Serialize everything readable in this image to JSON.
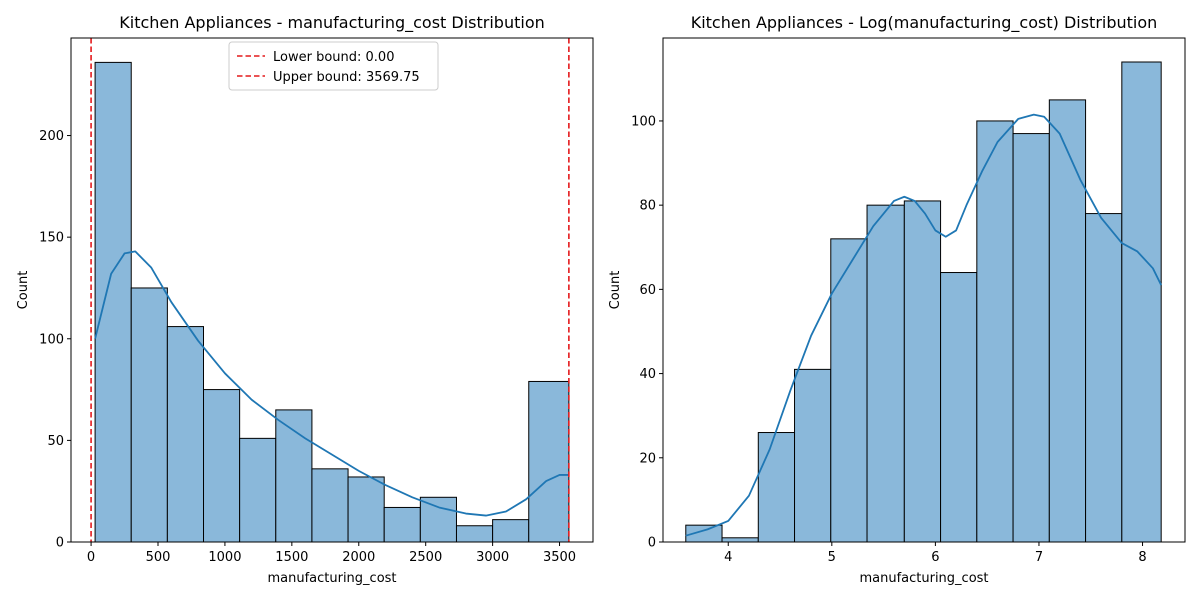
{
  "chart_data": [
    {
      "type": "bar",
      "title": "Kitchen Appliances - manufacturing_cost Distribution",
      "xlabel": "manufacturing_cost",
      "ylabel": "Count",
      "xlim": [
        -150,
        3750
      ],
      "ylim": [
        0,
        248
      ],
      "xticks": [
        0,
        500,
        1000,
        1500,
        2000,
        2500,
        3000,
        3500
      ],
      "xtick_labels": [
        "0",
        "500",
        "1000",
        "1500",
        "2000",
        "2500",
        "3000",
        "3500"
      ],
      "yticks": [
        0,
        50,
        100,
        150,
        200
      ],
      "ytick_labels": [
        "0",
        "50",
        "100",
        "150",
        "200"
      ],
      "bins": [
        {
          "x0": 30,
          "x1": 300,
          "count": 236
        },
        {
          "x0": 300,
          "x1": 570,
          "count": 125
        },
        {
          "x0": 570,
          "x1": 840,
          "count": 106
        },
        {
          "x0": 840,
          "x1": 1110,
          "count": 75
        },
        {
          "x0": 1110,
          "x1": 1380,
          "count": 51
        },
        {
          "x0": 1380,
          "x1": 1650,
          "count": 65
        },
        {
          "x0": 1650,
          "x1": 1920,
          "count": 36
        },
        {
          "x0": 1920,
          "x1": 2190,
          "count": 32
        },
        {
          "x0": 2190,
          "x1": 2460,
          "count": 17
        },
        {
          "x0": 2460,
          "x1": 2730,
          "count": 22
        },
        {
          "x0": 2730,
          "x1": 3000,
          "count": 8
        },
        {
          "x0": 3000,
          "x1": 3270,
          "count": 11
        },
        {
          "x0": 3270,
          "x1": 3569.75,
          "count": 79
        }
      ],
      "kde": {
        "x": [
          30,
          150,
          250,
          330,
          450,
          600,
          800,
          1000,
          1200,
          1400,
          1600,
          1800,
          2000,
          2200,
          2400,
          2600,
          2800,
          2950,
          3100,
          3250,
          3400,
          3500,
          3569.75
        ],
        "y": [
          100,
          132,
          142,
          143,
          135,
          118,
          99,
          83,
          70,
          60,
          51,
          43,
          35,
          28,
          22,
          17,
          14,
          13,
          15,
          21,
          30,
          33,
          33
        ]
      },
      "reference_lines": [
        {
          "x": 0.0,
          "label": "Lower bound: 0.00",
          "color": "#e41a1c"
        },
        {
          "x": 3569.75,
          "label": "Upper bound: 3569.75",
          "color": "#e41a1c"
        }
      ],
      "legend_position": "top-center",
      "bar_color": "#8ab8da",
      "line_color": "#1f77b4"
    },
    {
      "type": "bar",
      "title": "Kitchen Appliances - Log(manufacturing_cost) Distribution",
      "xlabel": "manufacturing_cost",
      "ylabel": "Count",
      "xlim": [
        3.37,
        8.41
      ],
      "ylim": [
        0,
        119.7
      ],
      "xticks": [
        4,
        5,
        6,
        7,
        8
      ],
      "xtick_labels": [
        "4",
        "5",
        "6",
        "7",
        "8"
      ],
      "yticks": [
        0,
        20,
        40,
        60,
        80,
        100
      ],
      "ytick_labels": [
        "0",
        "20",
        "40",
        "60",
        "80",
        "100"
      ],
      "bins": [
        {
          "x0": 3.59,
          "x1": 3.94,
          "count": 4
        },
        {
          "x0": 3.94,
          "x1": 4.29,
          "count": 1
        },
        {
          "x0": 4.29,
          "x1": 4.64,
          "count": 26
        },
        {
          "x0": 4.64,
          "x1": 4.99,
          "count": 41
        },
        {
          "x0": 4.99,
          "x1": 5.34,
          "count": 72
        },
        {
          "x0": 5.34,
          "x1": 5.7,
          "count": 80
        },
        {
          "x0": 5.7,
          "x1": 6.05,
          "count": 81
        },
        {
          "x0": 6.05,
          "x1": 6.4,
          "count": 64
        },
        {
          "x0": 6.4,
          "x1": 6.75,
          "count": 100
        },
        {
          "x0": 6.75,
          "x1": 7.1,
          "count": 97
        },
        {
          "x0": 7.1,
          "x1": 7.45,
          "count": 105
        },
        {
          "x0": 7.45,
          "x1": 7.8,
          "count": 78
        },
        {
          "x0": 7.8,
          "x1": 8.18,
          "count": 114
        }
      ],
      "kde": {
        "x": [
          3.59,
          3.8,
          4.0,
          4.2,
          4.4,
          4.6,
          4.8,
          5.0,
          5.2,
          5.4,
          5.6,
          5.7,
          5.8,
          5.9,
          6.0,
          6.1,
          6.2,
          6.3,
          6.45,
          6.6,
          6.8,
          6.95,
          7.05,
          7.2,
          7.4,
          7.6,
          7.8,
          7.95,
          8.1,
          8.18
        ],
        "y": [
          1.5,
          3,
          5,
          11,
          22,
          36,
          49,
          59,
          67,
          75,
          81,
          82,
          81,
          78,
          74,
          72.5,
          74,
          80,
          88,
          95,
          100.5,
          101.5,
          101,
          97,
          86,
          77,
          71,
          69,
          65,
          61
        ]
      },
      "bar_color": "#8ab8da",
      "line_color": "#1f77b4"
    }
  ]
}
